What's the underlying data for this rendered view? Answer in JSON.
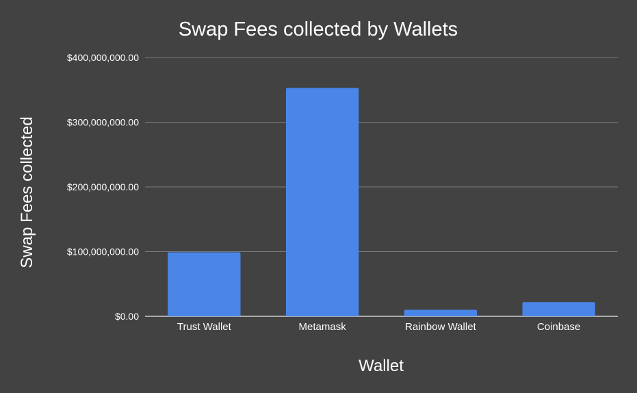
{
  "chart_data": {
    "type": "bar",
    "title": "Swap Fees collected by Wallets",
    "xlabel": "Wallet",
    "ylabel": "Swap Fees collected",
    "categories": [
      "Trust Wallet",
      "Metamask",
      "Rainbow Wallet",
      "Coinbase"
    ],
    "values": [
      99000000,
      353000000,
      10000000,
      22000000
    ],
    "ylim": [
      0,
      400000000
    ],
    "yticks": [
      0,
      100000000,
      200000000,
      300000000,
      400000000
    ],
    "ytick_labels": [
      "$0.00",
      "$100,000,000.00",
      "$200,000,000.00",
      "$300,000,000.00",
      "$400,000,000.00"
    ],
    "grid": true,
    "legend": "none",
    "colors": {
      "background": "#424242",
      "bar": "#4a86e8",
      "grid": "#7a7a7a",
      "text": "#ffffff",
      "axis": "#d0d0d0"
    }
  }
}
